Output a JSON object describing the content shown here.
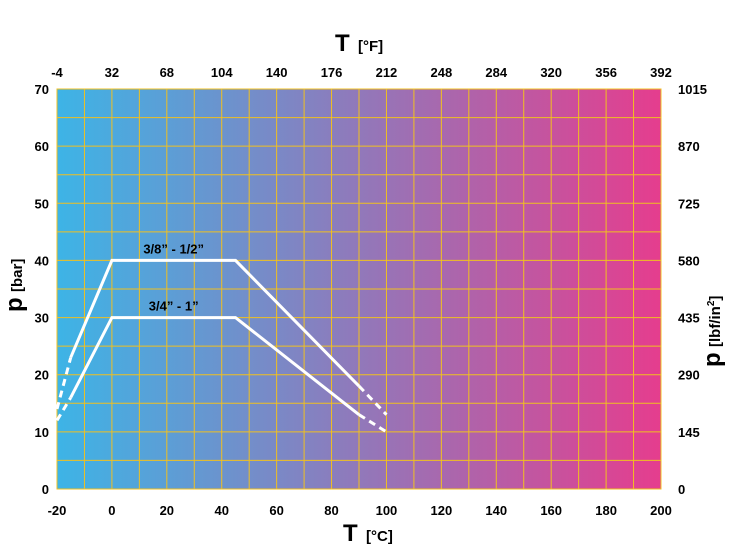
{
  "chart_data": {
    "type": "line",
    "x_bottom": {
      "symbol": "T",
      "unit": "[°C]",
      "ticks": [
        "-20",
        "0",
        "20",
        "40",
        "60",
        "80",
        "100",
        "120",
        "140",
        "160",
        "180",
        "200"
      ],
      "range": [
        -20,
        200
      ]
    },
    "x_top": {
      "symbol": "T",
      "unit": "[°F]",
      "ticks": [
        "-4",
        "32",
        "68",
        "104",
        "140",
        "176",
        "212",
        "248",
        "284",
        "320",
        "356",
        "392"
      ]
    },
    "y_left": {
      "symbol": "p",
      "unit": "[bar]",
      "ticks": [
        "0",
        "10",
        "20",
        "30",
        "40",
        "50",
        "60",
        "70"
      ],
      "range": [
        0,
        70
      ]
    },
    "y_right": {
      "symbol": "p",
      "unit_main": "[lbf/in",
      "unit_sup": "2",
      "unit_end": "]",
      "ticks": [
        "0",
        "145",
        "290",
        "435",
        "580",
        "725",
        "870",
        "1015"
      ]
    },
    "grid": true,
    "background_gradient": [
      "#3db4e6",
      "#e53d8e"
    ],
    "grid_color": "#f0c020",
    "series": [
      {
        "name": "3/8” - 1/2”",
        "solid": [
          [
            -15,
            23
          ],
          [
            0,
            40
          ],
          [
            45,
            40
          ],
          [
            90,
            18
          ]
        ],
        "dashed_start": [
          [
            -20,
            14
          ],
          [
            -15,
            23
          ]
        ],
        "dashed_end": [
          [
            90,
            18
          ],
          [
            100,
            13
          ]
        ]
      },
      {
        "name": "3/4” - 1”",
        "solid": [
          [
            -15,
            16
          ],
          [
            0,
            30
          ],
          [
            45,
            30
          ],
          [
            90,
            13
          ]
        ],
        "dashed_start": [
          [
            -20,
            12
          ],
          [
            -15,
            16
          ]
        ],
        "dashed_end": [
          [
            90,
            13
          ],
          [
            100,
            10
          ]
        ]
      }
    ]
  }
}
